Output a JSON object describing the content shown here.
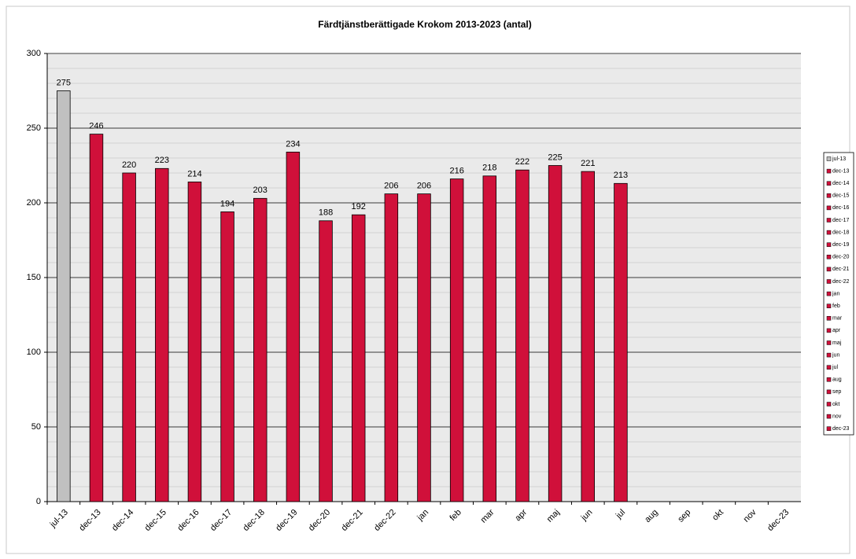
{
  "chart_data": {
    "type": "bar",
    "title": "Färdtjänstberättigade Krokom 2013-2023 (antal)",
    "categories": [
      "jul-13",
      "dec-13",
      "dec-14",
      "dec-15",
      "dec-16",
      "dec-17",
      "dec-18",
      "dec-19",
      "dec-20",
      "dec-21",
      "dec-22",
      "jan",
      "feb",
      "mar",
      "apr",
      "maj",
      "jun",
      "jul",
      "aug",
      "sep",
      "okt",
      "nov",
      "dec-23"
    ],
    "values": [
      275,
      246,
      220,
      223,
      214,
      194,
      203,
      234,
      188,
      192,
      206,
      206,
      216,
      218,
      222,
      225,
      221,
      213,
      null,
      null,
      null,
      null,
      null
    ],
    "colors": [
      "#c0c0c0",
      "#d0103a",
      "#d0103a",
      "#d0103a",
      "#d0103a",
      "#d0103a",
      "#d0103a",
      "#d0103a",
      "#d0103a",
      "#d0103a",
      "#d0103a",
      "#d0103a",
      "#d0103a",
      "#d0103a",
      "#d0103a",
      "#d0103a",
      "#d0103a",
      "#d0103a",
      "#d0103a",
      "#d0103a",
      "#d0103a",
      "#d0103a",
      "#d0103a"
    ],
    "ylim": [
      0,
      300
    ],
    "yticks": [
      0,
      50,
      100,
      150,
      200,
      250,
      300
    ],
    "minor_yticks": [
      10,
      20,
      30,
      40,
      60,
      70,
      80,
      90,
      110,
      120,
      130,
      140,
      160,
      170,
      180,
      190,
      210,
      220,
      230,
      240,
      260,
      270,
      280,
      290
    ],
    "grid": true,
    "legend": "right"
  }
}
